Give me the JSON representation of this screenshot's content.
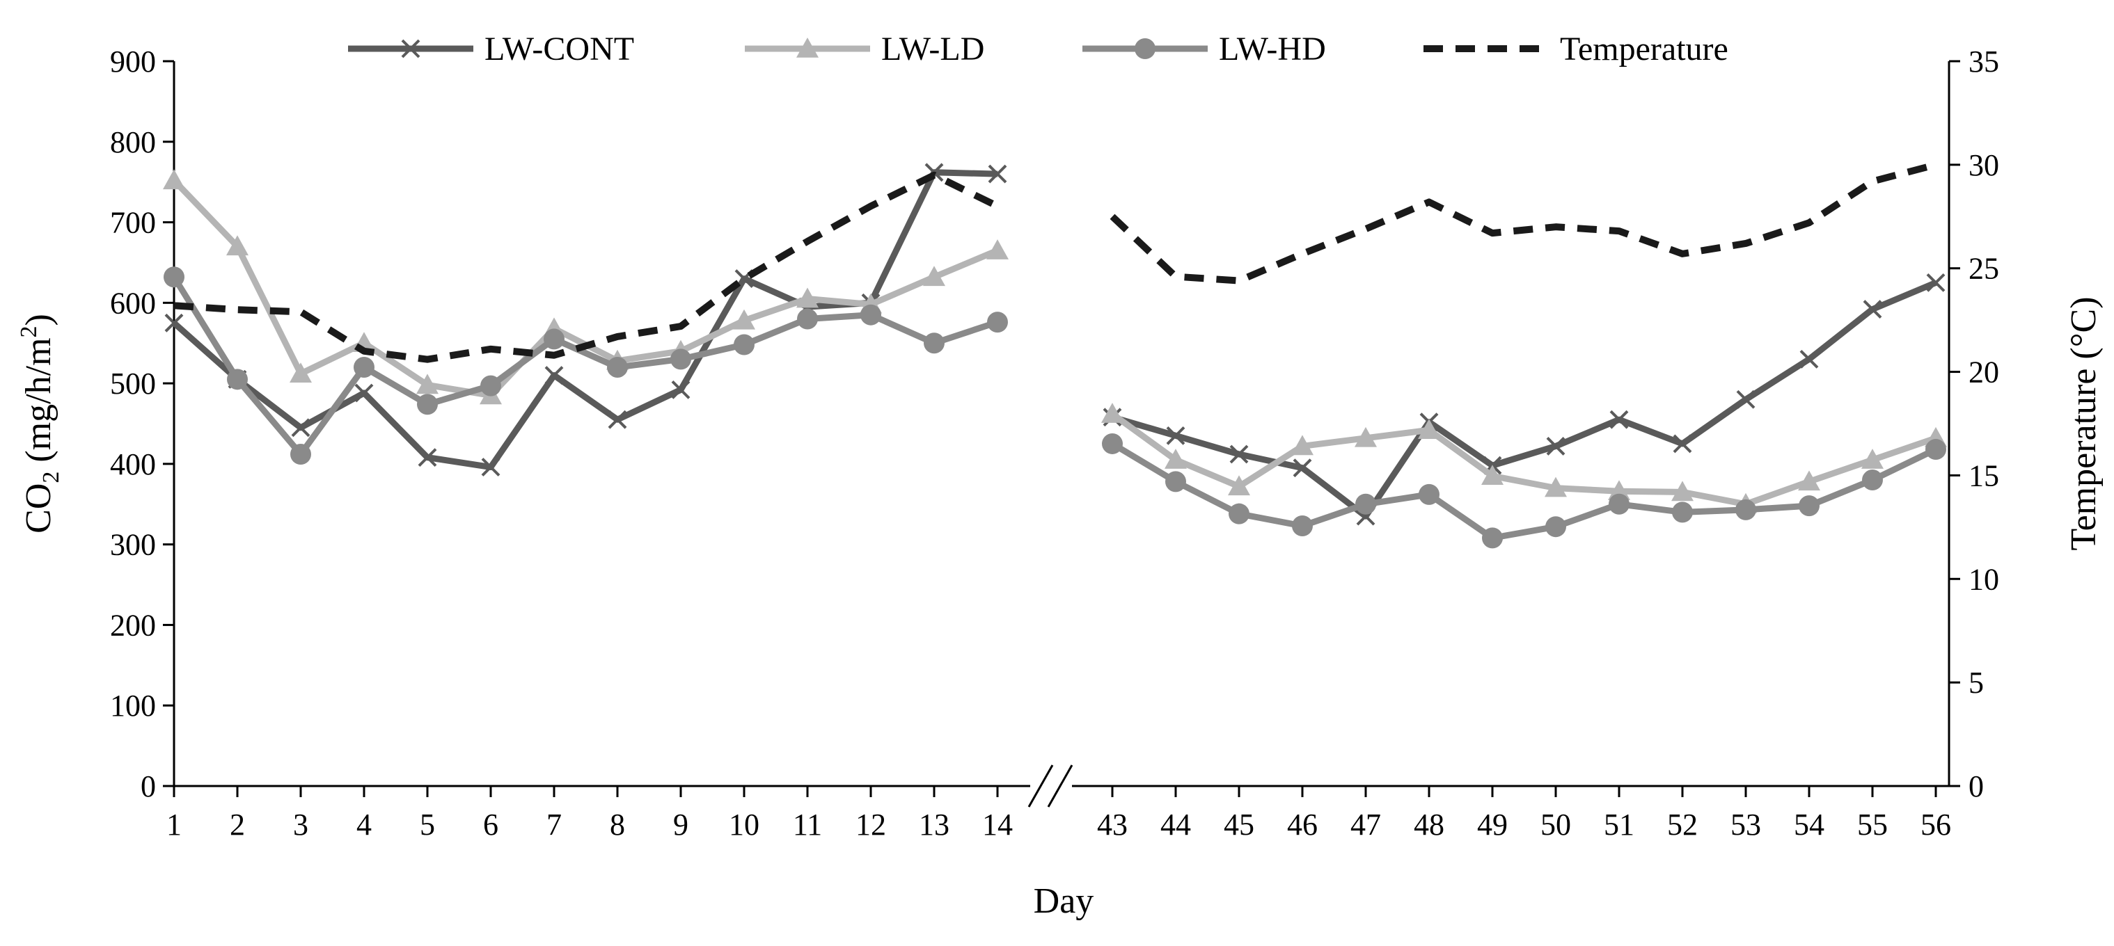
{
  "chart_data": {
    "type": "line",
    "xlabel": "Day",
    "ylabel": "CO₂ (mg/h/m²)",
    "ylabel_base": "CO",
    "ylabel_sub": "2",
    "ylabel_unit_open": " (mg/h/m",
    "ylabel_sup": "2",
    "ylabel_unit_close": ")",
    "y2label": "Temperature (°C)",
    "ylim": [
      0,
      900
    ],
    "y2lim": [
      0,
      35
    ],
    "yticks": [
      "0",
      "100",
      "200",
      "300",
      "400",
      "500",
      "600",
      "700",
      "800",
      "900"
    ],
    "y2ticks": [
      "0",
      "5",
      "10",
      "15",
      "20",
      "25",
      "30",
      "35"
    ],
    "x_segments": [
      [
        "1",
        "2",
        "3",
        "4",
        "5",
        "6",
        "7",
        "8",
        "9",
        "10",
        "11",
        "12",
        "13",
        "14"
      ],
      [
        "43",
        "44",
        "45",
        "46",
        "47",
        "48",
        "49",
        "50",
        "51",
        "52",
        "53",
        "54",
        "55",
        "56"
      ]
    ],
    "axis_break": "//",
    "legend_position": "top",
    "series": [
      {
        "name": "LW-CONT",
        "axis": "left",
        "marker": "x",
        "color": "#5a5a5a",
        "values": [
          [
            575,
            505,
            445,
            488,
            408,
            396,
            510,
            455,
            492,
            630,
            595,
            600,
            762,
            760
          ],
          [
            458,
            435,
            412,
            395,
            335,
            452,
            398,
            422,
            455,
            425,
            480,
            530,
            592,
            625
          ]
        ]
      },
      {
        "name": "LW-LD",
        "axis": "left",
        "marker": "triangle",
        "color": "#b4b4b4",
        "values": [
          [
            752,
            670,
            512,
            550,
            498,
            485,
            568,
            528,
            540,
            578,
            605,
            598,
            632,
            665
          ],
          [
            462,
            405,
            372,
            422,
            432,
            442,
            385,
            370,
            366,
            365,
            350,
            378,
            405,
            432
          ]
        ]
      },
      {
        "name": "LW-HD",
        "axis": "left",
        "marker": "circle",
        "color": "#8a8a8a",
        "values": [
          [
            632,
            505,
            412,
            520,
            474,
            497,
            555,
            520,
            530,
            548,
            580,
            585,
            550,
            576
          ],
          [
            425,
            378,
            338,
            323,
            350,
            362,
            308,
            322,
            350,
            340,
            343,
            348,
            380,
            418
          ]
        ]
      },
      {
        "name": "Temperature",
        "axis": "right",
        "marker": "none",
        "dashed": true,
        "color": "#1a1a1a",
        "values": [
          [
            23.2,
            23.0,
            22.9,
            21.0,
            20.6,
            21.1,
            20.8,
            21.7,
            22.2,
            24.5,
            26.3,
            28.0,
            29.5,
            28.0
          ],
          [
            27.5,
            24.6,
            24.4,
            25.7,
            26.9,
            28.2,
            26.7,
            27.0,
            26.8,
            25.7,
            26.2,
            27.2,
            29.2,
            30.0
          ]
        ]
      }
    ]
  }
}
